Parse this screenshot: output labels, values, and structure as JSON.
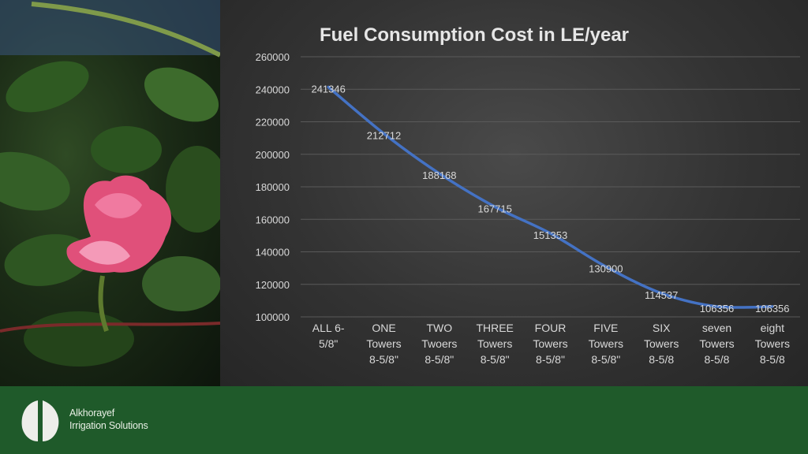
{
  "brand": {
    "name_line1": "Alkhorayef",
    "name_line2": "Irrigation Solutions"
  },
  "colors": {
    "line": "#4472c4",
    "panel": "#333333",
    "footer": "#1f5a2a",
    "text": "#d9d9d9"
  },
  "photo": {
    "subject": "pink cotton flower with leaves"
  },
  "chart_data": {
    "type": "line",
    "title": "Fuel Consumption Cost in LE/year",
    "xlabel": "",
    "ylabel": "",
    "ylim": [
      100000,
      260000
    ],
    "yticks": [
      "100000",
      "120000",
      "140000",
      "160000",
      "180000",
      "200000",
      "220000",
      "240000",
      "260000"
    ],
    "grid": true,
    "legend": "none",
    "categories": [
      [
        "ALL 6-",
        "5/8\""
      ],
      [
        "ONE",
        "Towers",
        "8-5/8\""
      ],
      [
        "TWO",
        "Twoers",
        "8-5/8\""
      ],
      [
        "THREE",
        "Towers",
        "8-5/8\""
      ],
      [
        "FOUR",
        "Towers",
        "8-5/8\""
      ],
      [
        "FIVE",
        "Towers",
        "8-5/8\""
      ],
      [
        "SIX",
        "Towers",
        "8-5/8"
      ],
      [
        "seven",
        "Towers",
        "8-5/8"
      ],
      [
        "eight",
        "Towers",
        "8-5/8"
      ]
    ],
    "values": [
      241346,
      212712,
      188168,
      167715,
      151353,
      130900,
      114537,
      106356,
      106356
    ],
    "data_labels": [
      "241346",
      "212712",
      "188168",
      "167715",
      "151353",
      "130900",
      "114537",
      "106356",
      "106356"
    ]
  }
}
